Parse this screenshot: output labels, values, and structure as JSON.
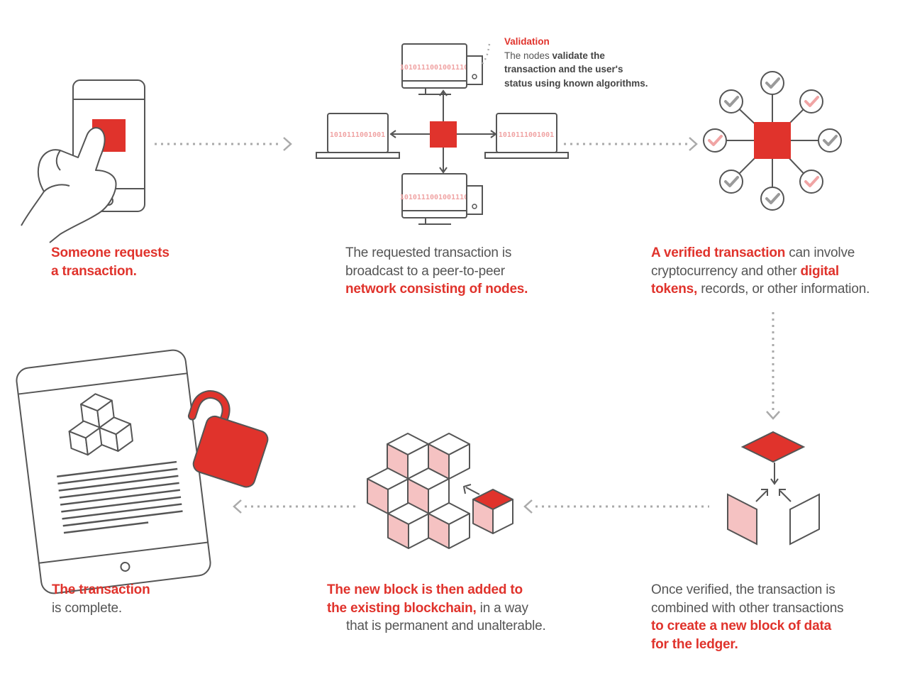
{
  "colors": {
    "accent": "#e0332c",
    "accent_light": "#f5c2c2",
    "stroke": "#555555",
    "check_gray": "#9a9a9a"
  },
  "binary_codes": {
    "top": "1010111001001110",
    "left": "1010111001001",
    "right": "1010111001001",
    "bottom": "1010111001001110"
  },
  "validation": {
    "title": "Validation",
    "line1_a": "The nodes ",
    "line1_b": "validate the",
    "line2": "transaction and the user's",
    "line3": "status using known algorithms."
  },
  "steps": {
    "step1": {
      "line1": "Someone requests",
      "line2": "a transaction."
    },
    "step2": {
      "line1": "The requested transaction is",
      "line2": "broadcast to a peer-to-peer",
      "line3": "network consisting of nodes."
    },
    "step3": {
      "l1_red": "A verified transaction",
      "l1_rest": " can involve",
      "l2_a": "cryptocurrency and other ",
      "l2_red": "digital",
      "l3_red": "tokens,",
      "l3_rest": " records, or other information."
    },
    "step4": {
      "line1": "Once verified, the transaction is",
      "line2": "combined with other transactions",
      "line3": "to create a new block of data",
      "line4": "for the ledger."
    },
    "step5": {
      "l1": "The new block is then added to",
      "l2_red": "the existing blockchain,",
      "l2_rest": " in a way",
      "l3": "that is permanent and unalterable."
    },
    "step6": {
      "line1": "The transaction",
      "line2": "is complete."
    }
  }
}
